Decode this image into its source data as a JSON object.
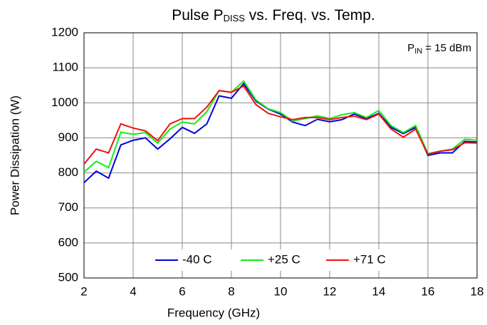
{
  "chart_data": {
    "type": "line",
    "title": [
      "Pulse P",
      "DISS",
      " vs. Freq. vs. Temp."
    ],
    "annotation": [
      "P",
      "IN",
      " = 15 dBm"
    ],
    "xlabel": "Frequency (GHz)",
    "ylabel": "Power Dissipation (W)",
    "x": [
      2,
      2.5,
      3,
      3.5,
      4,
      4.5,
      5,
      5.5,
      6,
      6.5,
      7,
      7.5,
      8,
      8.5,
      9,
      9.5,
      10,
      10.5,
      11,
      11.5,
      12,
      12.5,
      13,
      13.5,
      14,
      14.5,
      15,
      15.5,
      16,
      16.5,
      17,
      17.5,
      18
    ],
    "series": [
      {
        "name": "-40 C",
        "color": "#0000dd",
        "values": [
          772,
          805,
          785,
          880,
          893,
          900,
          868,
          897,
          930,
          913,
          940,
          1020,
          1013,
          1055,
          1005,
          982,
          968,
          945,
          935,
          953,
          946,
          952,
          968,
          955,
          970,
          930,
          912,
          930,
          850,
          857,
          857,
          890,
          888
        ]
      },
      {
        "name": "+25 C",
        "color": "#11ee11",
        "values": [
          802,
          833,
          815,
          916,
          910,
          915,
          885,
          925,
          945,
          940,
          975,
          1035,
          1030,
          1062,
          1008,
          983,
          972,
          948,
          955,
          963,
          955,
          966,
          972,
          958,
          978,
          935,
          915,
          935,
          855,
          862,
          868,
          896,
          893
        ]
      },
      {
        "name": "+71 C",
        "color": "#ee1111",
        "values": [
          825,
          868,
          857,
          940,
          928,
          920,
          892,
          940,
          955,
          955,
          988,
          1035,
          1030,
          1048,
          995,
          970,
          960,
          952,
          958,
          958,
          952,
          958,
          962,
          952,
          968,
          925,
          902,
          925,
          853,
          862,
          866,
          886,
          885
        ]
      }
    ],
    "xlim": [
      2,
      18
    ],
    "xticks": [
      2,
      4,
      6,
      8,
      10,
      12,
      14,
      16,
      18
    ],
    "ylim": [
      500,
      1200
    ],
    "yticks": [
      500,
      600,
      700,
      800,
      900,
      1000,
      1100,
      1200
    ],
    "grid": true,
    "legend": "bottom"
  }
}
